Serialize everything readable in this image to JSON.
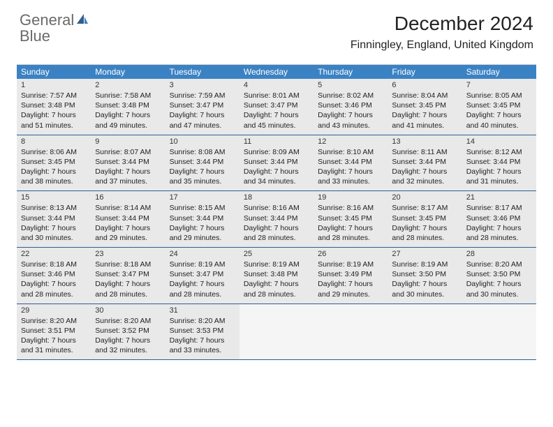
{
  "logo": {
    "text1": "General",
    "text2": "Blue"
  },
  "title": "December 2024",
  "location": "Finningley, England, United Kingdom",
  "weekdays": [
    "Sunday",
    "Monday",
    "Tuesday",
    "Wednesday",
    "Thursday",
    "Friday",
    "Saturday"
  ],
  "colors": {
    "header_bg": "#3b82c4",
    "header_text": "#ffffff",
    "day_bg": "#e9e9e9",
    "week_divider": "#2f5f8f",
    "logo_gray": "#6a6a6a",
    "logo_blue": "#3b82c4"
  },
  "weeks": [
    [
      {
        "n": "1",
        "sr": "Sunrise: 7:57 AM",
        "ss": "Sunset: 3:48 PM",
        "d1": "Daylight: 7 hours",
        "d2": "and 51 minutes."
      },
      {
        "n": "2",
        "sr": "Sunrise: 7:58 AM",
        "ss": "Sunset: 3:48 PM",
        "d1": "Daylight: 7 hours",
        "d2": "and 49 minutes."
      },
      {
        "n": "3",
        "sr": "Sunrise: 7:59 AM",
        "ss": "Sunset: 3:47 PM",
        "d1": "Daylight: 7 hours",
        "d2": "and 47 minutes."
      },
      {
        "n": "4",
        "sr": "Sunrise: 8:01 AM",
        "ss": "Sunset: 3:47 PM",
        "d1": "Daylight: 7 hours",
        "d2": "and 45 minutes."
      },
      {
        "n": "5",
        "sr": "Sunrise: 8:02 AM",
        "ss": "Sunset: 3:46 PM",
        "d1": "Daylight: 7 hours",
        "d2": "and 43 minutes."
      },
      {
        "n": "6",
        "sr": "Sunrise: 8:04 AM",
        "ss": "Sunset: 3:45 PM",
        "d1": "Daylight: 7 hours",
        "d2": "and 41 minutes."
      },
      {
        "n": "7",
        "sr": "Sunrise: 8:05 AM",
        "ss": "Sunset: 3:45 PM",
        "d1": "Daylight: 7 hours",
        "d2": "and 40 minutes."
      }
    ],
    [
      {
        "n": "8",
        "sr": "Sunrise: 8:06 AM",
        "ss": "Sunset: 3:45 PM",
        "d1": "Daylight: 7 hours",
        "d2": "and 38 minutes."
      },
      {
        "n": "9",
        "sr": "Sunrise: 8:07 AM",
        "ss": "Sunset: 3:44 PM",
        "d1": "Daylight: 7 hours",
        "d2": "and 37 minutes."
      },
      {
        "n": "10",
        "sr": "Sunrise: 8:08 AM",
        "ss": "Sunset: 3:44 PM",
        "d1": "Daylight: 7 hours",
        "d2": "and 35 minutes."
      },
      {
        "n": "11",
        "sr": "Sunrise: 8:09 AM",
        "ss": "Sunset: 3:44 PM",
        "d1": "Daylight: 7 hours",
        "d2": "and 34 minutes."
      },
      {
        "n": "12",
        "sr": "Sunrise: 8:10 AM",
        "ss": "Sunset: 3:44 PM",
        "d1": "Daylight: 7 hours",
        "d2": "and 33 minutes."
      },
      {
        "n": "13",
        "sr": "Sunrise: 8:11 AM",
        "ss": "Sunset: 3:44 PM",
        "d1": "Daylight: 7 hours",
        "d2": "and 32 minutes."
      },
      {
        "n": "14",
        "sr": "Sunrise: 8:12 AM",
        "ss": "Sunset: 3:44 PM",
        "d1": "Daylight: 7 hours",
        "d2": "and 31 minutes."
      }
    ],
    [
      {
        "n": "15",
        "sr": "Sunrise: 8:13 AM",
        "ss": "Sunset: 3:44 PM",
        "d1": "Daylight: 7 hours",
        "d2": "and 30 minutes."
      },
      {
        "n": "16",
        "sr": "Sunrise: 8:14 AM",
        "ss": "Sunset: 3:44 PM",
        "d1": "Daylight: 7 hours",
        "d2": "and 29 minutes."
      },
      {
        "n": "17",
        "sr": "Sunrise: 8:15 AM",
        "ss": "Sunset: 3:44 PM",
        "d1": "Daylight: 7 hours",
        "d2": "and 29 minutes."
      },
      {
        "n": "18",
        "sr": "Sunrise: 8:16 AM",
        "ss": "Sunset: 3:44 PM",
        "d1": "Daylight: 7 hours",
        "d2": "and 28 minutes."
      },
      {
        "n": "19",
        "sr": "Sunrise: 8:16 AM",
        "ss": "Sunset: 3:45 PM",
        "d1": "Daylight: 7 hours",
        "d2": "and 28 minutes."
      },
      {
        "n": "20",
        "sr": "Sunrise: 8:17 AM",
        "ss": "Sunset: 3:45 PM",
        "d1": "Daylight: 7 hours",
        "d2": "and 28 minutes."
      },
      {
        "n": "21",
        "sr": "Sunrise: 8:17 AM",
        "ss": "Sunset: 3:46 PM",
        "d1": "Daylight: 7 hours",
        "d2": "and 28 minutes."
      }
    ],
    [
      {
        "n": "22",
        "sr": "Sunrise: 8:18 AM",
        "ss": "Sunset: 3:46 PM",
        "d1": "Daylight: 7 hours",
        "d2": "and 28 minutes."
      },
      {
        "n": "23",
        "sr": "Sunrise: 8:18 AM",
        "ss": "Sunset: 3:47 PM",
        "d1": "Daylight: 7 hours",
        "d2": "and 28 minutes."
      },
      {
        "n": "24",
        "sr": "Sunrise: 8:19 AM",
        "ss": "Sunset: 3:47 PM",
        "d1": "Daylight: 7 hours",
        "d2": "and 28 minutes."
      },
      {
        "n": "25",
        "sr": "Sunrise: 8:19 AM",
        "ss": "Sunset: 3:48 PM",
        "d1": "Daylight: 7 hours",
        "d2": "and 28 minutes."
      },
      {
        "n": "26",
        "sr": "Sunrise: 8:19 AM",
        "ss": "Sunset: 3:49 PM",
        "d1": "Daylight: 7 hours",
        "d2": "and 29 minutes."
      },
      {
        "n": "27",
        "sr": "Sunrise: 8:19 AM",
        "ss": "Sunset: 3:50 PM",
        "d1": "Daylight: 7 hours",
        "d2": "and 30 minutes."
      },
      {
        "n": "28",
        "sr": "Sunrise: 8:20 AM",
        "ss": "Sunset: 3:50 PM",
        "d1": "Daylight: 7 hours",
        "d2": "and 30 minutes."
      }
    ],
    [
      {
        "n": "29",
        "sr": "Sunrise: 8:20 AM",
        "ss": "Sunset: 3:51 PM",
        "d1": "Daylight: 7 hours",
        "d2": "and 31 minutes."
      },
      {
        "n": "30",
        "sr": "Sunrise: 8:20 AM",
        "ss": "Sunset: 3:52 PM",
        "d1": "Daylight: 7 hours",
        "d2": "and 32 minutes."
      },
      {
        "n": "31",
        "sr": "Sunrise: 8:20 AM",
        "ss": "Sunset: 3:53 PM",
        "d1": "Daylight: 7 hours",
        "d2": "and 33 minutes."
      },
      {
        "empty": true
      },
      {
        "empty": true
      },
      {
        "empty": true
      },
      {
        "empty": true
      }
    ]
  ]
}
